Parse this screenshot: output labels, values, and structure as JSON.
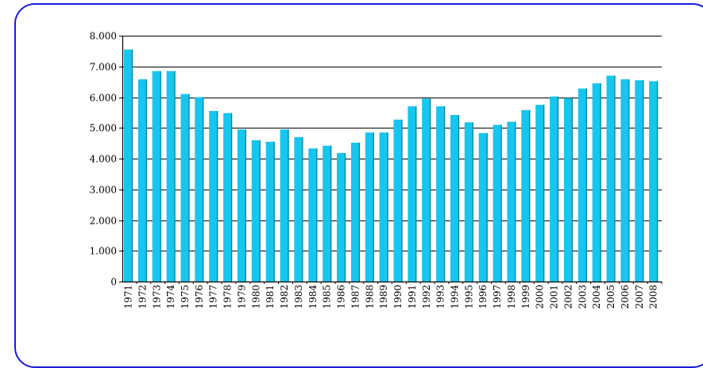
{
  "chart_data": {
    "type": "bar",
    "title": "",
    "xlabel": "",
    "ylabel": "",
    "ylim": [
      0,
      8000
    ],
    "yticks": [
      0,
      1000,
      2000,
      3000,
      4000,
      5000,
      6000,
      7000,
      8000
    ],
    "ytick_labels": [
      "0",
      "1.000",
      "2.000",
      "3.000",
      "4.000",
      "5.000",
      "6.000",
      "7.000",
      "8.000"
    ],
    "grid": "horizontal",
    "categories": [
      "1971",
      "1972",
      "1973",
      "1974",
      "1975",
      "1976",
      "1977",
      "1978",
      "1979",
      "1980",
      "1981",
      "1982",
      "1983",
      "1984",
      "1985",
      "1986",
      "1987",
      "1988",
      "1989",
      "1990",
      "1991",
      "1992",
      "1993",
      "1994",
      "1995",
      "1996",
      "1997",
      "1998",
      "1999",
      "2000",
      "2001",
      "2002",
      "2003",
      "2004",
      "2005",
      "2006",
      "2007",
      "2008"
    ],
    "values": [
      7550,
      6580,
      6850,
      6850,
      6100,
      6000,
      5550,
      5480,
      4950,
      4600,
      4550,
      4950,
      4700,
      4330,
      4420,
      4180,
      4520,
      4850,
      4850,
      5270,
      5700,
      5950,
      5700,
      5420,
      5180,
      4830,
      5100,
      5200,
      5580,
      5750,
      6020,
      5970,
      6280,
      6450,
      6700,
      6580,
      6550,
      6520
    ],
    "colors": {
      "bar": "#16c6ee",
      "bar_shadow": "#0a7f9d",
      "axis": "#000000",
      "grid": "#000000",
      "frame": "#1a1adf"
    }
  }
}
